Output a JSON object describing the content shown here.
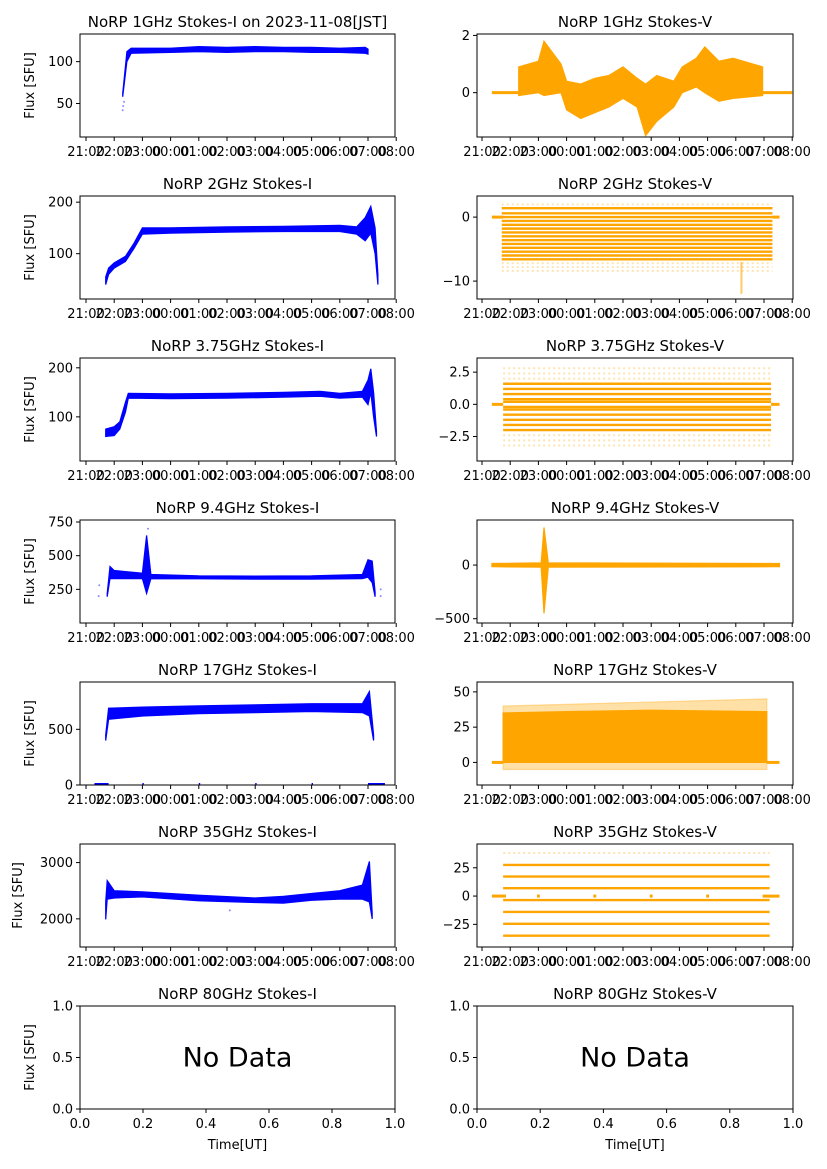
{
  "figure": {
    "suptitle_date": "2023-11-08[JST]"
  },
  "chart_data": [
    {
      "id": "1GHz-I",
      "type": "scatter",
      "title": "NoRP 1GHz Stokes-I on 2023-11-08[JST]",
      "ylabel": "Flux [SFU]",
      "xlabel": "",
      "color": "#0000ff",
      "xlim": [
        21.0,
        32.2
      ],
      "ylim": [
        10,
        133
      ],
      "yticks": [
        50,
        100
      ],
      "xticks": [
        "21:00",
        "22:00",
        "23:00",
        "00:00",
        "01:00",
        "02:00",
        "03:00",
        "04:00",
        "05:00",
        "06:00",
        "07:00",
        "08:00"
      ],
      "band": [
        [
          22.3,
          58,
          62
        ],
        [
          22.45,
          100,
          112
        ],
        [
          22.6,
          110,
          116
        ],
        [
          24,
          111,
          116
        ],
        [
          25,
          112,
          118
        ],
        [
          26,
          111,
          117
        ],
        [
          27,
          112,
          118
        ],
        [
          28,
          112,
          117
        ],
        [
          29,
          111,
          117
        ],
        [
          30,
          111,
          116
        ],
        [
          30.9,
          110,
          117
        ],
        [
          31.0,
          109,
          115
        ]
      ],
      "outliers": [
        [
          22.3,
          42
        ],
        [
          22.32,
          47
        ],
        [
          22.35,
          52
        ]
      ]
    },
    {
      "id": "1GHz-V",
      "type": "scatter",
      "title": "NoRP 1GHz Stokes-V",
      "ylabel": "",
      "xlabel": "",
      "color": "#ffa500",
      "xlim": [
        20.95,
        32.2
      ],
      "ylim": [
        -1.55,
        2.05
      ],
      "yticks": [
        0
      ],
      "ytick_labels": [
        "0"
      ],
      "ytick_extra": [
        2
      ],
      "xticks": [
        "21:00",
        "22:00",
        "23:00",
        "00:00",
        "01:00",
        "02:00",
        "03:00",
        "04:00",
        "05:00",
        "06:00",
        "07:00",
        "08:00"
      ],
      "flat": [
        [
          21.35,
          22.3,
          0
        ],
        [
          30.95,
          32.0,
          0
        ]
      ],
      "band": [
        [
          22.3,
          -0.1,
          0.9
        ],
        [
          23.0,
          0.0,
          1.1
        ],
        [
          23.2,
          -0.1,
          1.8
        ],
        [
          23.8,
          0.0,
          1.0
        ],
        [
          24.0,
          -0.6,
          0.4
        ],
        [
          24.5,
          -0.9,
          0.3
        ],
        [
          25.0,
          -0.7,
          0.5
        ],
        [
          25.5,
          -0.5,
          0.6
        ],
        [
          26.0,
          -0.2,
          0.9
        ],
        [
          26.5,
          -0.5,
          0.5
        ],
        [
          26.8,
          -1.5,
          0.3
        ],
        [
          27.2,
          -1.0,
          0.6
        ],
        [
          27.8,
          -0.5,
          0.4
        ],
        [
          28.1,
          0.0,
          0.9
        ],
        [
          28.6,
          0.2,
          1.2
        ],
        [
          28.9,
          0.0,
          1.6
        ],
        [
          29.4,
          -0.3,
          1.1
        ],
        [
          29.9,
          -0.2,
          1.2
        ],
        [
          30.95,
          -0.1,
          0.9
        ]
      ]
    },
    {
      "id": "2GHz-I",
      "type": "scatter",
      "title": "NoRP 2GHz Stokes-I",
      "ylabel": "Flux [SFU]",
      "xlabel": "",
      "color": "#0000ff",
      "xlim": [
        21.0,
        32.2
      ],
      "ylim": [
        12,
        212
      ],
      "yticks": [
        100,
        200
      ],
      "xticks": [
        "21:00",
        "22:00",
        "23:00",
        "00:00",
        "01:00",
        "02:00",
        "03:00",
        "04:00",
        "05:00",
        "06:00",
        "07:00",
        "08:00"
      ],
      "band": [
        [
          21.7,
          40,
          55
        ],
        [
          21.8,
          60,
          72
        ],
        [
          22.0,
          72,
          82
        ],
        [
          22.4,
          85,
          95
        ],
        [
          22.7,
          110,
          120
        ],
        [
          23.0,
          138,
          150
        ],
        [
          24,
          140,
          150
        ],
        [
          26,
          142,
          152
        ],
        [
          28,
          143,
          153
        ],
        [
          30,
          143,
          155
        ],
        [
          30.6,
          138,
          152
        ],
        [
          30.9,
          125,
          170
        ],
        [
          31.1,
          140,
          192
        ],
        [
          31.25,
          100,
          150
        ],
        [
          31.35,
          40,
          60
        ]
      ]
    },
    {
      "id": "2GHz-V",
      "type": "scatter",
      "title": "NoRP 2GHz Stokes-V",
      "ylabel": "",
      "xlabel": "",
      "color": "#ffa500",
      "xlim": [
        20.95,
        32.2
      ],
      "ylim": [
        -12.8,
        3.3
      ],
      "yticks": [
        0,
        -10
      ],
      "ytick_labels": [
        "0",
        "−10"
      ],
      "xticks": [
        "21:00",
        "22:00",
        "23:00",
        "00:00",
        "01:00",
        "02:00",
        "03:00",
        "04:00",
        "05:00",
        "06:00",
        "07:00",
        "08:00"
      ],
      "flat": [
        [
          21.35,
          21.75,
          0
        ],
        [
          31.3,
          31.55,
          0
        ]
      ],
      "levels_range": [
        21.7,
        31.3
      ],
      "levels": [
        1.4,
        0.6,
        0,
        -0.6,
        -1.2,
        -1.8,
        -2.4,
        -3.0,
        -3.6,
        -4.2,
        -4.8,
        -5.4,
        -6.0,
        -6.6
      ],
      "sparse_levels": [
        2.0,
        -7.2,
        -7.8,
        -8.4
      ],
      "spike": [
        30.2,
        -12,
        -7
      ]
    },
    {
      "id": "3.75GHz-I",
      "type": "scatter",
      "title": "NoRP 3.75GHz Stokes-I",
      "ylabel": "Flux [SFU]",
      "xlabel": "",
      "color": "#0000ff",
      "xlim": [
        21.0,
        32.2
      ],
      "ylim": [
        10,
        220
      ],
      "yticks": [
        100,
        200
      ],
      "xticks": [
        "21:00",
        "22:00",
        "23:00",
        "00:00",
        "01:00",
        "02:00",
        "03:00",
        "04:00",
        "05:00",
        "06:00",
        "07:00",
        "08:00"
      ],
      "band": [
        [
          21.7,
          60,
          75
        ],
        [
          22.0,
          62,
          80
        ],
        [
          22.2,
          75,
          90
        ],
        [
          22.4,
          110,
          130
        ],
        [
          22.5,
          138,
          148
        ],
        [
          24,
          137,
          147
        ],
        [
          26,
          138,
          148
        ],
        [
          28,
          140,
          150
        ],
        [
          29.3,
          142,
          152
        ],
        [
          30,
          138,
          148
        ],
        [
          30.8,
          140,
          152
        ],
        [
          31.0,
          125,
          175
        ],
        [
          31.1,
          150,
          198
        ],
        [
          31.2,
          100,
          150
        ],
        [
          31.3,
          60,
          70
        ]
      ]
    },
    {
      "id": "3.75GHz-V",
      "type": "scatter",
      "title": "NoRP 3.75GHz Stokes-V",
      "ylabel": "",
      "xlabel": "",
      "color": "#ffa500",
      "xlim": [
        20.95,
        32.2
      ],
      "ylim": [
        -4.4,
        3.6
      ],
      "yticks": [
        2.5,
        0.0,
        -2.5
      ],
      "ytick_labels": [
        "2.5",
        "0.0",
        "−2.5"
      ],
      "xticks": [
        "21:00",
        "22:00",
        "23:00",
        "00:00",
        "01:00",
        "02:00",
        "03:00",
        "04:00",
        "05:00",
        "06:00",
        "07:00",
        "08:00"
      ],
      "flat": [
        [
          21.35,
          21.75,
          0
        ],
        [
          31.25,
          31.55,
          0
        ]
      ],
      "levels_range": [
        21.75,
        31.25
      ],
      "levels": [
        1.6,
        1.2,
        0.8,
        0.4,
        0.2,
        -0.2,
        -0.4,
        -0.8,
        -1.2,
        -1.6,
        -2.0
      ],
      "sparse_levels": [
        2.8,
        2.4,
        2.0,
        -2.4,
        -2.8,
        -3.2
      ]
    },
    {
      "id": "9.4GHz-I",
      "type": "scatter",
      "title": "NoRP 9.4GHz Stokes-I",
      "ylabel": "Flux [SFU]",
      "xlabel": "",
      "color": "#0000ff",
      "xlim": [
        21.0,
        32.2
      ],
      "ylim": [
        0,
        765
      ],
      "yticks": [
        250,
        500,
        750
      ],
      "xticks": [
        "21:00",
        "22:00",
        "23:00",
        "00:00",
        "01:00",
        "02:00",
        "03:00",
        "04:00",
        "05:00",
        "06:00",
        "07:00",
        "08:00"
      ],
      "band": [
        [
          21.75,
          195,
          220
        ],
        [
          21.85,
          330,
          420
        ],
        [
          22.0,
          330,
          390
        ],
        [
          23.0,
          330,
          370
        ],
        [
          23.15,
          220,
          650
        ],
        [
          23.3,
          330,
          360
        ],
        [
          25,
          328,
          350
        ],
        [
          27,
          325,
          348
        ],
        [
          29,
          325,
          350
        ],
        [
          30.8,
          330,
          360
        ],
        [
          31.0,
          340,
          470
        ],
        [
          31.15,
          300,
          460
        ],
        [
          31.25,
          195,
          230
        ]
      ],
      "outliers": [
        [
          21.45,
          200
        ],
        [
          21.47,
          280
        ],
        [
          31.45,
          200
        ],
        [
          31.45,
          250
        ],
        [
          23.2,
          700
        ]
      ]
    },
    {
      "id": "9.4GHz-V",
      "type": "scatter",
      "title": "NoRP 9.4GHz Stokes-V",
      "ylabel": "",
      "xlabel": "",
      "color": "#ffa500",
      "xlim": [
        20.95,
        32.2
      ],
      "ylim": [
        -540,
        420
      ],
      "yticks": [
        0,
        -500
      ],
      "ytick_labels": [
        "0",
        "−500"
      ],
      "xticks": [
        "21:00",
        "22:00",
        "23:00",
        "00:00",
        "01:00",
        "02:00",
        "03:00",
        "04:00",
        "05:00",
        "06:00",
        "07:00",
        "08:00"
      ],
      "band": [
        [
          21.35,
          -15,
          15
        ],
        [
          23.1,
          -20,
          20
        ],
        [
          23.2,
          -450,
          350
        ],
        [
          23.35,
          -20,
          20
        ],
        [
          31.55,
          -15,
          15
        ]
      ]
    },
    {
      "id": "17GHz-I",
      "type": "scatter",
      "title": "NoRP 17GHz Stokes-I",
      "ylabel": "Flux [SFU]",
      "xlabel": "",
      "color": "#0000ff",
      "xlim": [
        21.0,
        32.2
      ],
      "ylim": [
        0,
        925
      ],
      "yticks": [
        0,
        500
      ],
      "xticks": [
        "21:00",
        "22:00",
        "23:00",
        "00:00",
        "01:00",
        "02:00",
        "03:00",
        "04:00",
        "05:00",
        "06:00",
        "07:00",
        "08:00"
      ],
      "band": [
        [
          21.7,
          400,
          450
        ],
        [
          21.8,
          590,
          690
        ],
        [
          23,
          620,
          700
        ],
        [
          25,
          640,
          710
        ],
        [
          27,
          650,
          720
        ],
        [
          29,
          660,
          730
        ],
        [
          30.8,
          650,
          730
        ],
        [
          31.05,
          620,
          840
        ],
        [
          31.2,
          400,
          450
        ]
      ],
      "zeros": [
        [
          21.3,
          21.8
        ],
        [
          23.0,
          23.05
        ],
        [
          25.0,
          25.05
        ],
        [
          27.0,
          27.05
        ],
        [
          29.0,
          29.05
        ],
        [
          31.0,
          31.6
        ]
      ]
    },
    {
      "id": "17GHz-V",
      "type": "scatter",
      "title": "NoRP 17GHz Stokes-V",
      "ylabel": "",
      "xlabel": "",
      "color": "#ffa500",
      "xlim": [
        20.95,
        32.2
      ],
      "ylim": [
        -16,
        57
      ],
      "yticks": [
        50,
        25,
        0
      ],
      "ytick_labels": [
        "50",
        "25",
        "0"
      ],
      "xticks": [
        "21:00",
        "22:00",
        "23:00",
        "00:00",
        "01:00",
        "02:00",
        "03:00",
        "04:00",
        "05:00",
        "06:00",
        "07:00",
        "08:00"
      ],
      "flat": [
        [
          21.35,
          21.75,
          0
        ],
        [
          31.1,
          31.55,
          0
        ]
      ],
      "band": [
        [
          21.75,
          0,
          35
        ],
        [
          24,
          0,
          36
        ],
        [
          27,
          0,
          37
        ],
        [
          31.1,
          0,
          36
        ]
      ],
      "halo": [
        [
          21.75,
          -5,
          40
        ],
        [
          31.1,
          -5,
          45
        ]
      ]
    },
    {
      "id": "35GHz-I",
      "type": "scatter",
      "title": "NoRP 35GHz Stokes-I",
      "ylabel": "Flux [SFU]",
      "xlabel": "",
      "color": "#0000ff",
      "xlim": [
        21.0,
        32.2
      ],
      "ylim": [
        1500,
        3330
      ],
      "yticks": [
        2000,
        3000
      ],
      "xticks": [
        "21:00",
        "22:00",
        "23:00",
        "00:00",
        "01:00",
        "02:00",
        "03:00",
        "04:00",
        "05:00",
        "06:00",
        "07:00",
        "08:00"
      ],
      "band": [
        [
          21.7,
          1990,
          2300
        ],
        [
          21.75,
          2350,
          2680
        ],
        [
          22.0,
          2370,
          2500
        ],
        [
          23,
          2390,
          2480
        ],
        [
          25,
          2320,
          2420
        ],
        [
          27,
          2290,
          2370
        ],
        [
          28,
          2280,
          2400
        ],
        [
          29,
          2330,
          2450
        ],
        [
          30,
          2350,
          2500
        ],
        [
          30.8,
          2350,
          2600
        ],
        [
          31.05,
          2300,
          3020
        ],
        [
          31.15,
          2000,
          2100
        ]
      ],
      "outliers": [
        [
          26.1,
          2150
        ]
      ]
    },
    {
      "id": "35GHz-V",
      "type": "scatter",
      "title": "NoRP 35GHz Stokes-V",
      "ylabel": "",
      "xlabel": "",
      "color": "#ffa500",
      "xlim": [
        20.95,
        32.2
      ],
      "ylim": [
        -45,
        46
      ],
      "yticks": [
        25,
        0,
        -25
      ],
      "ytick_labels": [
        "25",
        "0",
        "−25"
      ],
      "xticks": [
        "21:00",
        "22:00",
        "23:00",
        "00:00",
        "01:00",
        "02:00",
        "03:00",
        "04:00",
        "05:00",
        "06:00",
        "07:00",
        "08:00"
      ],
      "flat": [
        [
          21.35,
          21.85,
          0
        ],
        [
          22.95,
          23.05,
          0
        ],
        [
          24.95,
          25.05,
          0
        ],
        [
          26.95,
          27.05,
          0
        ],
        [
          28.95,
          29.05,
          0
        ],
        [
          30.95,
          31.55,
          0
        ]
      ],
      "levels_range": [
        21.75,
        31.2
      ],
      "levels": [
        27.5,
        17.2,
        7.0,
        -3.5,
        -14,
        -24.5,
        -35
      ],
      "sparse_levels": [
        38
      ]
    },
    {
      "id": "80GHz-I",
      "type": "empty",
      "title": "NoRP 80GHz Stokes-I",
      "ylabel": "Flux [SFU]",
      "xlabel": "Time[UT]",
      "annotation": "No Data",
      "xlim": [
        0,
        1
      ],
      "ylim": [
        0,
        1
      ],
      "xticks": [
        "0.0",
        "0.2",
        "0.4",
        "0.6",
        "0.8",
        "1.0"
      ],
      "ytick_labels": [
        "0.0",
        "0.5",
        "1.0"
      ]
    },
    {
      "id": "80GHz-V",
      "type": "empty",
      "title": "NoRP 80GHz Stokes-V",
      "ylabel": "",
      "xlabel": "Time[UT]",
      "annotation": "No Data",
      "xlim": [
        0,
        1
      ],
      "ylim": [
        0,
        1
      ],
      "xticks": [
        "0.0",
        "0.2",
        "0.4",
        "0.6",
        "0.8",
        "1.0"
      ],
      "ytick_labels": [
        "0.0",
        "0.5",
        "1.0"
      ]
    }
  ]
}
